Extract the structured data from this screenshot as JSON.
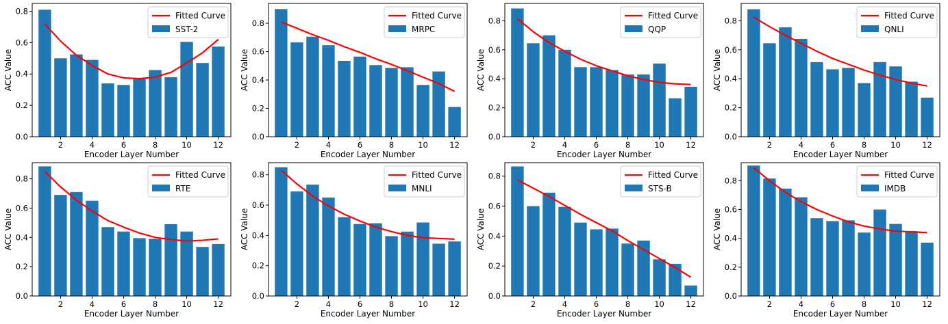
{
  "figure": {
    "colors": {
      "bar": "#1f77b4",
      "fit": "#ff0000",
      "axis": "#000000",
      "legend_border": "#cccccc"
    },
    "shared_x_ticks": [
      "2",
      "4",
      "6",
      "8",
      "10",
      "12"
    ],
    "shared_y_ticks": [
      "0.0",
      "0.2",
      "0.4",
      "0.6",
      "0.8"
    ]
  },
  "chart_data": [
    {
      "type": "bar",
      "dataset": "SST-2",
      "fit_label": "Fitted Curve",
      "xlabel": "Encoder Layer Number",
      "ylabel": "ACC Value",
      "legend": "top-right",
      "grid": false,
      "ylim": [
        0,
        0.85
      ],
      "x": [
        1,
        2,
        3,
        4,
        5,
        6,
        7,
        8,
        9,
        10,
        11,
        12
      ],
      "values": [
        0.81,
        0.5,
        0.525,
        0.49,
        0.34,
        0.33,
        0.37,
        0.425,
        0.38,
        0.605,
        0.47,
        0.575
      ],
      "fit": [
        0.72,
        0.61,
        0.52,
        0.455,
        0.4,
        0.375,
        0.37,
        0.38,
        0.41,
        0.47,
        0.535,
        0.62
      ]
    },
    {
      "type": "bar",
      "dataset": "MRPC",
      "fit_label": "Fitted Curve",
      "xlabel": "Encoder Layer Number",
      "ylabel": "ACC Value",
      "legend": "top-right",
      "grid": false,
      "ylim": [
        0,
        0.94
      ],
      "x": [
        1,
        2,
        3,
        4,
        5,
        6,
        7,
        8,
        9,
        10,
        11,
        12
      ],
      "values": [
        0.9,
        0.665,
        0.705,
        0.645,
        0.535,
        0.565,
        0.505,
        0.485,
        0.49,
        0.365,
        0.46,
        0.21
      ],
      "fit": [
        0.81,
        0.765,
        0.72,
        0.68,
        0.635,
        0.595,
        0.55,
        0.51,
        0.465,
        0.42,
        0.375,
        0.32
      ]
    },
    {
      "type": "bar",
      "dataset": "QQP",
      "fit_label": "Fitted Curve",
      "xlabel": "Encoder Layer Number",
      "ylabel": "ACC Value",
      "legend": "top-right",
      "grid": false,
      "ylim": [
        0,
        0.92
      ],
      "x": [
        1,
        2,
        3,
        4,
        5,
        6,
        7,
        8,
        9,
        10,
        11,
        12
      ],
      "values": [
        0.885,
        0.645,
        0.7,
        0.6,
        0.48,
        0.48,
        0.46,
        0.43,
        0.43,
        0.505,
        0.265,
        0.345
      ],
      "fit": [
        0.815,
        0.725,
        0.65,
        0.59,
        0.535,
        0.49,
        0.455,
        0.42,
        0.395,
        0.375,
        0.365,
        0.36
      ]
    },
    {
      "type": "bar",
      "dataset": "QNLI",
      "fit_label": "Fitted Curve",
      "xlabel": "Encoder Layer Number",
      "ylabel": "ACC Value",
      "legend": "top-right",
      "grid": false,
      "ylim": [
        0,
        0.92
      ],
      "x": [
        1,
        2,
        3,
        4,
        5,
        6,
        7,
        8,
        9,
        10,
        11,
        12
      ],
      "values": [
        0.88,
        0.645,
        0.755,
        0.675,
        0.515,
        0.465,
        0.475,
        0.37,
        0.515,
        0.485,
        0.38,
        0.27
      ],
      "fit": [
        0.825,
        0.76,
        0.7,
        0.645,
        0.59,
        0.54,
        0.5,
        0.46,
        0.425,
        0.395,
        0.37,
        0.35
      ]
    },
    {
      "type": "bar",
      "dataset": "RTE",
      "fit_label": "Fitted Curve",
      "xlabel": "Encoder Layer Number",
      "ylabel": "ACC Value",
      "legend": "top-right",
      "grid": false,
      "ylim": [
        0,
        0.91
      ],
      "x": [
        1,
        2,
        3,
        4,
        5,
        6,
        7,
        8,
        9,
        10,
        11,
        12
      ],
      "values": [
        0.885,
        0.69,
        0.71,
        0.65,
        0.47,
        0.44,
        0.395,
        0.39,
        0.49,
        0.44,
        0.335,
        0.355
      ],
      "fit": [
        0.85,
        0.745,
        0.655,
        0.58,
        0.515,
        0.47,
        0.43,
        0.4,
        0.385,
        0.375,
        0.38,
        0.39
      ]
    },
    {
      "type": "bar",
      "dataset": "MNLI",
      "fit_label": "Fitted Curve",
      "xlabel": "Encoder Layer Number",
      "ylabel": "ACC Value",
      "legend": "top-right",
      "grid": false,
      "ylim": [
        0,
        0.88
      ],
      "x": [
        1,
        2,
        3,
        4,
        5,
        6,
        7,
        8,
        9,
        10,
        11,
        12
      ],
      "values": [
        0.85,
        0.69,
        0.735,
        0.65,
        0.52,
        0.475,
        0.48,
        0.395,
        0.425,
        0.485,
        0.345,
        0.36
      ],
      "fit": [
        0.83,
        0.74,
        0.66,
        0.595,
        0.54,
        0.495,
        0.455,
        0.425,
        0.4,
        0.385,
        0.38,
        0.375
      ]
    },
    {
      "type": "bar",
      "dataset": "STS-B",
      "fit_label": "Fitted Curve",
      "xlabel": "Encoder Layer Number",
      "ylabel": "ACC Value",
      "legend": "top-right",
      "grid": false,
      "ylim": [
        0,
        0.89
      ],
      "x": [
        1,
        2,
        3,
        4,
        5,
        6,
        7,
        8,
        9,
        10,
        11,
        12
      ],
      "values": [
        0.865,
        0.6,
        0.69,
        0.595,
        0.49,
        0.445,
        0.45,
        0.35,
        0.37,
        0.245,
        0.215,
        0.07
      ],
      "fit": [
        0.775,
        0.72,
        0.665,
        0.605,
        0.545,
        0.49,
        0.435,
        0.37,
        0.31,
        0.25,
        0.19,
        0.125
      ]
    },
    {
      "type": "bar",
      "dataset": "IMDB",
      "fit_label": "Fitted Curve",
      "xlabel": "Encoder Layer Number",
      "ylabel": "ACC Value",
      "legend": "top-right",
      "grid": false,
      "ylim": [
        0,
        0.925
      ],
      "x": [
        1,
        2,
        3,
        4,
        5,
        6,
        7,
        8,
        9,
        10,
        11,
        12
      ],
      "values": [
        0.905,
        0.815,
        0.745,
        0.685,
        0.54,
        0.52,
        0.525,
        0.44,
        0.6,
        0.5,
        0.45,
        0.37
      ],
      "fit": [
        0.89,
        0.8,
        0.72,
        0.655,
        0.6,
        0.555,
        0.515,
        0.485,
        0.465,
        0.45,
        0.445,
        0.44
      ]
    }
  ]
}
